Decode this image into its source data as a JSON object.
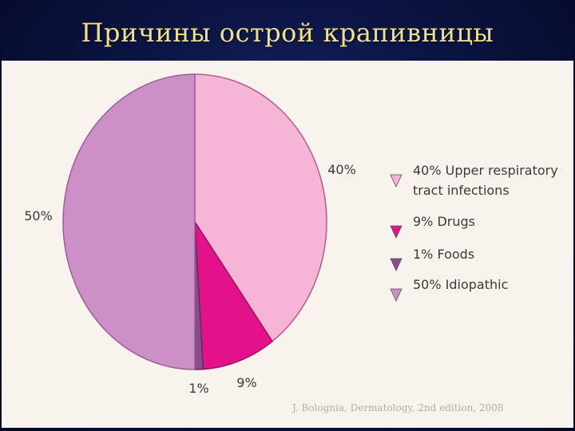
{
  "slide": {
    "title": "Причины острой крапивницы",
    "citation": "J. Bolognia, Dermatology, 2nd edition, 2008"
  },
  "chart_data": {
    "type": "pie",
    "start_angle_deg": 0,
    "direction": "clockwise",
    "slices": [
      {
        "label": "Upper respiratory tract infections",
        "value": 40,
        "value_label": "40%",
        "color": "#f6b5d6",
        "edge_color": "#b75a8c"
      },
      {
        "label": "Drugs",
        "value": 9,
        "value_label": "9%",
        "color": "#e4128a",
        "edge_color": "#9e1060"
      },
      {
        "label": "Foods",
        "value": 1,
        "value_label": "1%",
        "color": "#8a4d8c",
        "edge_color": "#5e2f62"
      },
      {
        "label": "Idiopathic",
        "value": 50,
        "value_label": "50%",
        "color": "#cc8fc6",
        "edge_color": "#9a5e96"
      }
    ],
    "legend": {
      "placement": "right",
      "entries": [
        {
          "lines": [
            "40% Upper respiratory",
            "tract infections"
          ],
          "color": "#f6b5d6"
        },
        {
          "lines": [
            "9% Drugs"
          ],
          "color": "#e4128a"
        },
        {
          "lines": [
            "1% Foods"
          ],
          "color": "#8a4d8c"
        },
        {
          "lines": [
            "50% Idiopathic"
          ],
          "color": "#cc8fc6"
        }
      ]
    }
  }
}
